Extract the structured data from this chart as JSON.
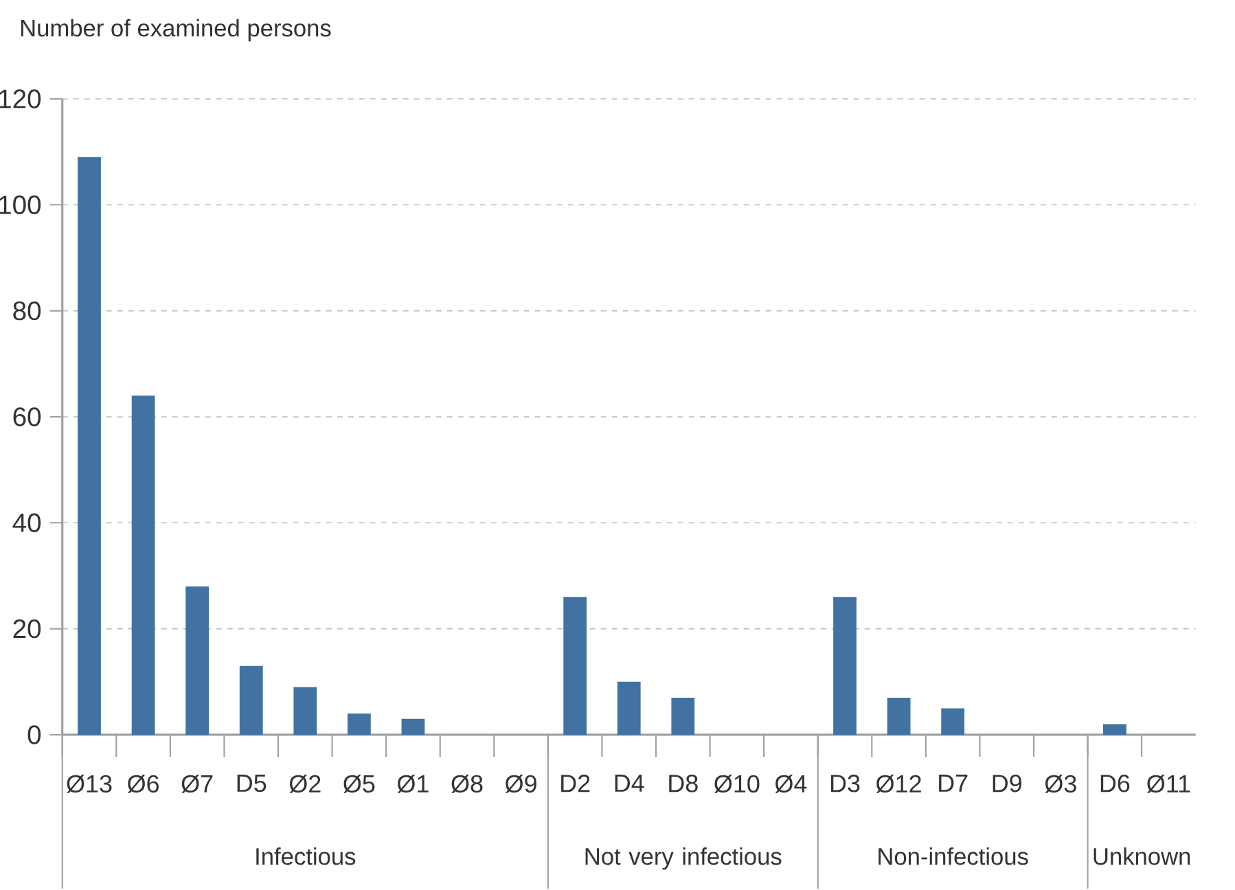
{
  "chart_data": {
    "type": "bar",
    "ylabel": "Number of examined persons",
    "categories": [
      "Ø13",
      "Ø6",
      "Ø7",
      "D5",
      "Ø2",
      "Ø5",
      "Ø1",
      "Ø8",
      "Ø9",
      "D2",
      "D4",
      "D8",
      "Ø10",
      "Ø4",
      "D3",
      "Ø12",
      "D7",
      "D9",
      "Ø3",
      "D6",
      "Ø11"
    ],
    "values": [
      109,
      64,
      28,
      13,
      9,
      4,
      3,
      0,
      0,
      26,
      10,
      7,
      0,
      0,
      26,
      7,
      5,
      0,
      0,
      2,
      0
    ],
    "color": "#4272a2",
    "ylim": [
      0,
      120
    ],
    "yticks": [
      0,
      20,
      40,
      60,
      80,
      100,
      120
    ],
    "grid": "y",
    "annotations": [
      "Infectious",
      "Not very infectious",
      "Non-infectious",
      "Unknown"
    ]
  }
}
